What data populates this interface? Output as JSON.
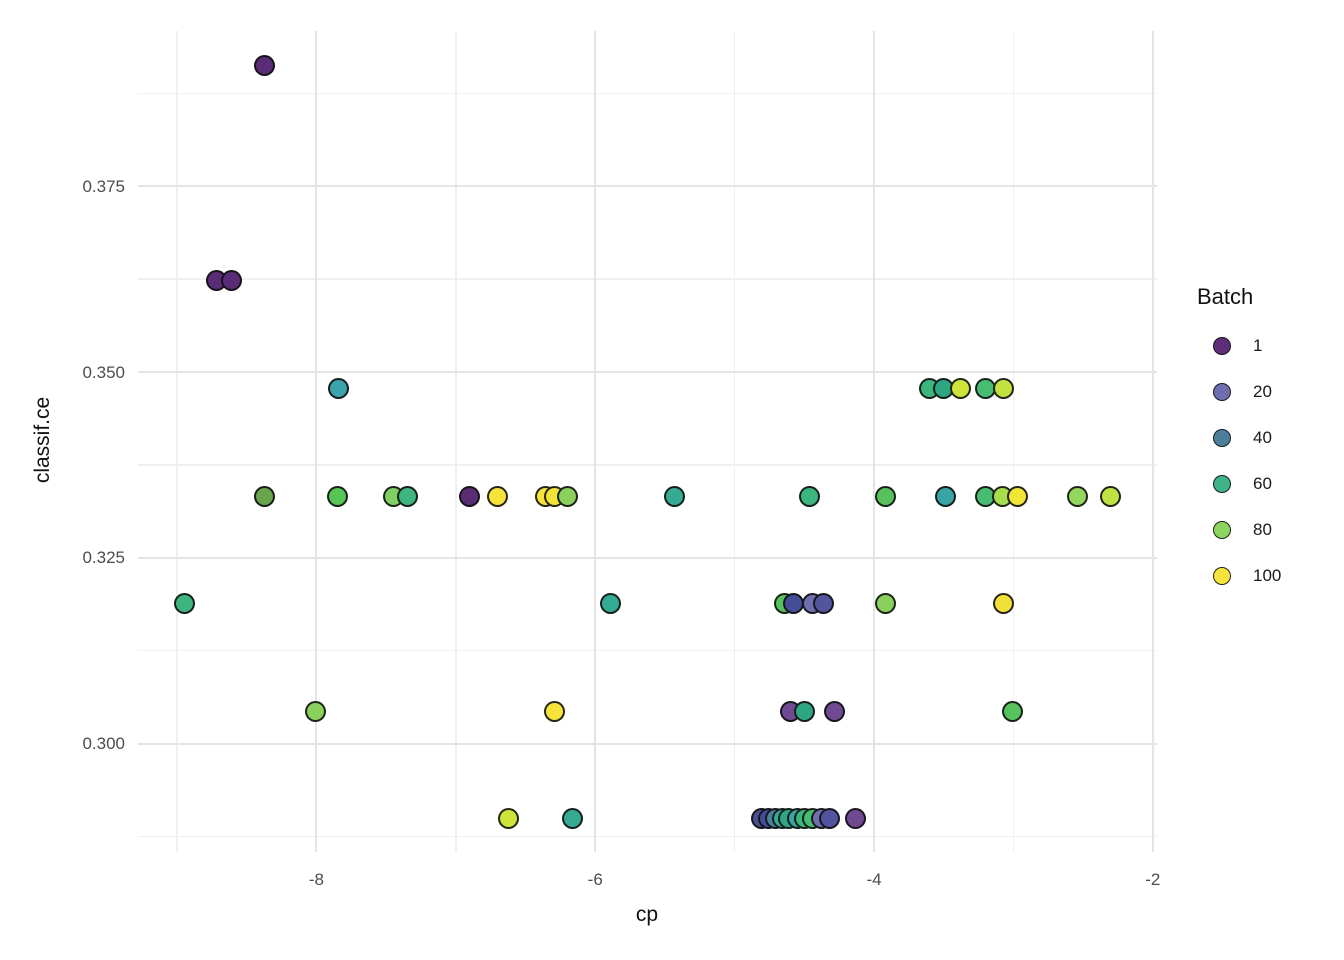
{
  "chart_data": {
    "type": "scatter",
    "title": "",
    "xlabel": "cp",
    "ylabel": "classif.ce",
    "xlim": [
      -9.28,
      -1.97
    ],
    "ylim": [
      0.2854,
      0.3959
    ],
    "grid": "major+minor, no axis lines, white background",
    "x_ticks": {
      "values": [
        -8,
        -6,
        -4,
        -2
      ],
      "labels": [
        "-8",
        "-6",
        "-4",
        "-2"
      ]
    },
    "x_minor": [
      -9,
      -7,
      -5,
      -3
    ],
    "y_ticks": {
      "values": [
        0.3,
        0.325,
        0.35,
        0.375
      ],
      "labels": [
        "0.300",
        "0.325",
        "0.350",
        "0.375"
      ]
    },
    "y_minor": [
      0.2875,
      0.3125,
      0.3375,
      0.3625,
      0.3875
    ],
    "legend": {
      "title": "Batch",
      "position": "right",
      "entries": [
        {
          "label": "1",
          "color": "#5e2e79"
        },
        {
          "label": "20",
          "color": "#6e6eae"
        },
        {
          "label": "40",
          "color": "#4d7f9d"
        },
        {
          "label": "60",
          "color": "#3eb488"
        },
        {
          "label": "80",
          "color": "#8dd55f"
        },
        {
          "label": "100",
          "color": "#f6e53c"
        }
      ]
    },
    "points": [
      {
        "cp": -8.37,
        "ce": 0.3913,
        "color": "#5b2c76"
      },
      {
        "cp": -8.72,
        "ce": 0.3623,
        "color": "#5b2c76"
      },
      {
        "cp": -8.61,
        "ce": 0.3623,
        "color": "#5b2c76"
      },
      {
        "cp": -7.84,
        "ce": 0.3478,
        "color": "#3aa3ab"
      },
      {
        "cp": -3.6,
        "ce": 0.3478,
        "color": "#3cb67e"
      },
      {
        "cp": -3.5,
        "ce": 0.3478,
        "color": "#2fa682"
      },
      {
        "cp": -3.38,
        "ce": 0.3478,
        "color": "#cfe43a"
      },
      {
        "cp": -3.2,
        "ce": 0.3478,
        "color": "#47bd72"
      },
      {
        "cp": -3.07,
        "ce": 0.3478,
        "color": "#c3e240"
      },
      {
        "cp": -8.37,
        "ce": 0.3333,
        "color": "#68a44b"
      },
      {
        "cp": -7.85,
        "ce": 0.3333,
        "color": "#55c556"
      },
      {
        "cp": -7.45,
        "ce": 0.3333,
        "color": "#7fcf62"
      },
      {
        "cp": -7.35,
        "ce": 0.3333,
        "color": "#3cb67e"
      },
      {
        "cp": -6.9,
        "ce": 0.3333,
        "color": "#5b2c76"
      },
      {
        "cp": -6.7,
        "ce": 0.3333,
        "color": "#f6e43b"
      },
      {
        "cp": -6.36,
        "ce": 0.3333,
        "color": "#f6e43b"
      },
      {
        "cp": -6.29,
        "ce": 0.3333,
        "color": "#f2e338"
      },
      {
        "cp": -6.2,
        "ce": 0.3333,
        "color": "#8ad05c"
      },
      {
        "cp": -5.43,
        "ce": 0.3333,
        "color": "#35ab93"
      },
      {
        "cp": -4.46,
        "ce": 0.3333,
        "color": "#3cb67e"
      },
      {
        "cp": -3.92,
        "ce": 0.3333,
        "color": "#57c25d"
      },
      {
        "cp": -3.49,
        "ce": 0.3333,
        "color": "#3aa3a4"
      },
      {
        "cp": -3.2,
        "ce": 0.3333,
        "color": "#47bd72"
      },
      {
        "cp": -3.08,
        "ce": 0.3333,
        "color": "#a8dd4e"
      },
      {
        "cp": -2.97,
        "ce": 0.3333,
        "color": "#f1e535"
      },
      {
        "cp": -2.54,
        "ce": 0.3333,
        "color": "#95d75c"
      },
      {
        "cp": -2.3,
        "ce": 0.3333,
        "color": "#bfe142"
      },
      {
        "cp": -8.95,
        "ce": 0.3188,
        "color": "#3cb67e"
      },
      {
        "cp": -5.89,
        "ce": 0.3188,
        "color": "#35ab93"
      },
      {
        "cp": -4.64,
        "ce": 0.3188,
        "color": "#57c25d"
      },
      {
        "cp": -4.58,
        "ce": 0.3188,
        "color": "#444e96"
      },
      {
        "cp": -4.44,
        "ce": 0.3188,
        "color": "#6f6fad"
      },
      {
        "cp": -4.36,
        "ce": 0.3188,
        "color": "#53549e"
      },
      {
        "cp": -3.92,
        "ce": 0.3188,
        "color": "#8ad05c"
      },
      {
        "cp": -3.07,
        "ce": 0.3188,
        "color": "#f1e038"
      },
      {
        "cp": -8.01,
        "ce": 0.3043,
        "color": "#8ad05c"
      },
      {
        "cp": -6.29,
        "ce": 0.3043,
        "color": "#f6e43b"
      },
      {
        "cp": -4.6,
        "ce": 0.3043,
        "color": "#6f4a93"
      },
      {
        "cp": -4.5,
        "ce": 0.3043,
        "color": "#2fa682"
      },
      {
        "cp": -4.28,
        "ce": 0.3043,
        "color": "#6f4a93"
      },
      {
        "cp": -3.01,
        "ce": 0.3043,
        "color": "#57c25d"
      },
      {
        "cp": -6.62,
        "ce": 0.2899,
        "color": "#cfe43a"
      },
      {
        "cp": -6.16,
        "ce": 0.2899,
        "color": "#35ab93"
      },
      {
        "cp": -4.81,
        "ce": 0.2899,
        "color": "#4a4e93"
      },
      {
        "cp": -4.76,
        "ce": 0.2899,
        "color": "#434d98"
      },
      {
        "cp": -4.71,
        "ce": 0.2899,
        "color": "#4d7f9d"
      },
      {
        "cp": -4.66,
        "ce": 0.2899,
        "color": "#35ab93"
      },
      {
        "cp": -4.61,
        "ce": 0.2899,
        "color": "#2fa682"
      },
      {
        "cp": -4.55,
        "ce": 0.2899,
        "color": "#3aa3a4"
      },
      {
        "cp": -4.5,
        "ce": 0.2899,
        "color": "#3cb67e"
      },
      {
        "cp": -4.44,
        "ce": 0.2899,
        "color": "#47bd72"
      },
      {
        "cp": -4.38,
        "ce": 0.2899,
        "color": "#6f6fad"
      },
      {
        "cp": -4.32,
        "ce": 0.2899,
        "color": "#53549e"
      },
      {
        "cp": -4.13,
        "ce": 0.2899,
        "color": "#6f4a93"
      }
    ]
  },
  "styles": {
    "background": "#ffffff",
    "grid_major": "#e4e4e4",
    "grid_minor": "#f0f0f0",
    "tick_label_color": "#4d4d4d",
    "axis_title_color": "#111111",
    "point_stroke": "#0f0f0f"
  }
}
